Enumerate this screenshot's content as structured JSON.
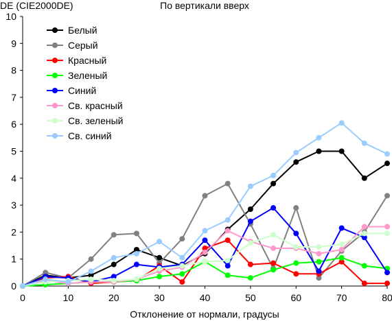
{
  "chart_data": {
    "type": "line",
    "title": "По вертикали вверх",
    "ylabel": "DE (CIE2000DE)",
    "xlabel": "Отклонение от нормали, градусы",
    "xlim": [
      0,
      80
    ],
    "ylim": [
      0,
      10
    ],
    "x_ticks": [
      0,
      10,
      20,
      30,
      40,
      50,
      60,
      70,
      80
    ],
    "y_ticks": [
      0,
      1,
      2,
      3,
      4,
      5,
      6,
      7,
      8,
      9,
      10
    ],
    "grid": false,
    "legend_position": "top-left",
    "x": [
      0,
      5,
      10,
      15,
      20,
      25,
      30,
      35,
      40,
      45,
      50,
      55,
      60,
      65,
      70,
      75,
      80
    ],
    "series": [
      {
        "name": "Белый",
        "color": "#000000",
        "values": [
          0.0,
          0.4,
          0.3,
          0.4,
          0.8,
          1.35,
          1.05,
          0.75,
          1.2,
          2.1,
          2.85,
          3.8,
          4.6,
          5.0,
          5.0,
          4.0,
          4.55
        ]
      },
      {
        "name": "Серый",
        "color": "#808080",
        "values": [
          0.0,
          0.5,
          0.3,
          1.0,
          1.9,
          1.95,
          0.85,
          1.75,
          3.35,
          3.8,
          2.3,
          0.65,
          2.9,
          0.3,
          1.3,
          2.0,
          3.35
        ]
      },
      {
        "name": "Красный",
        "color": "#ff0000",
        "values": [
          0.0,
          0.3,
          0.35,
          0.1,
          0.15,
          0.2,
          0.75,
          0.15,
          1.4,
          1.7,
          0.8,
          0.85,
          0.45,
          0.45,
          0.9,
          0.1,
          0.1
        ]
      },
      {
        "name": "Зеленый",
        "color": "#00ff00",
        "values": [
          0.0,
          0.05,
          0.1,
          0.15,
          0.15,
          0.2,
          0.35,
          0.45,
          0.9,
          0.4,
          0.3,
          0.6,
          0.85,
          0.9,
          1.05,
          0.75,
          0.65
        ]
      },
      {
        "name": "Синий",
        "color": "#0000ff",
        "values": [
          0.0,
          0.35,
          0.3,
          0.15,
          0.35,
          0.8,
          0.7,
          0.8,
          1.7,
          0.75,
          2.4,
          2.9,
          1.95,
          0.55,
          2.15,
          1.8,
          0.5
        ]
      },
      {
        "name": "Св. красный",
        "color": "#ff99cc",
        "values": [
          0.0,
          0.2,
          0.1,
          0.15,
          0.15,
          0.25,
          0.55,
          0.7,
          1.25,
          2.05,
          1.65,
          1.4,
          1.4,
          1.2,
          1.35,
          2.2,
          2.2
        ]
      },
      {
        "name": "Св. зеленый",
        "color": "#ccffcc",
        "values": [
          0.0,
          0.15,
          0.2,
          0.25,
          0.2,
          0.25,
          0.65,
          0.75,
          0.9,
          0.95,
          1.6,
          1.9,
          1.45,
          1.45,
          1.55,
          1.95,
          1.95
        ]
      },
      {
        "name": "Св. синий",
        "color": "#99ccff",
        "values": [
          0.0,
          0.25,
          0.15,
          0.55,
          1.05,
          1.2,
          1.65,
          1.05,
          2.05,
          2.45,
          3.7,
          4.1,
          4.95,
          5.5,
          6.05,
          5.3,
          4.9
        ]
      }
    ]
  }
}
